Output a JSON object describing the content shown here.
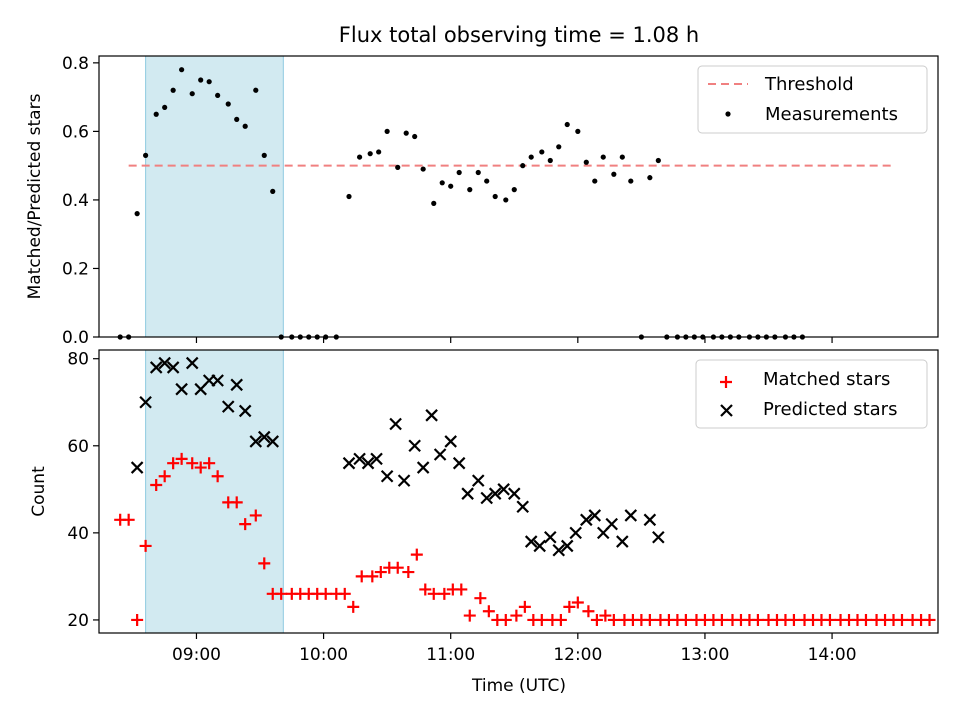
{
  "chart_data": [
    {
      "type": "scatter",
      "title": "Flux total observing time = 1.08 h",
      "xlabel": "",
      "ylabel": "Matched/Predicted stars",
      "xlim": [
        "08:14",
        "14:50"
      ],
      "ylim": [
        0,
        0.82
      ],
      "yticks": [
        "0.0",
        "0.2",
        "0.4",
        "0.6",
        "0.8"
      ],
      "shaded_interval": [
        "08:36",
        "09:41"
      ],
      "shade_color": "#add8e6",
      "legend_position": "top-right",
      "threshold": {
        "name": "Threshold",
        "value": 0.5,
        "x_range": [
          "08:28",
          "14:28"
        ],
        "color": "#f08080"
      },
      "series": [
        {
          "name": "Measurements",
          "marker": "dot",
          "color": "#000000",
          "points": [
            [
              "08:24",
              0.0
            ],
            [
              "08:28",
              0.0
            ],
            [
              "08:32",
              0.36
            ],
            [
              "08:36",
              0.53
            ],
            [
              "08:41",
              0.65
            ],
            [
              "08:45",
              0.67
            ],
            [
              "08:49",
              0.72
            ],
            [
              "08:53",
              0.78
            ],
            [
              "08:58",
              0.71
            ],
            [
              "09:02",
              0.75
            ],
            [
              "09:06",
              0.745
            ],
            [
              "09:10",
              0.705
            ],
            [
              "09:15",
              0.68
            ],
            [
              "09:19",
              0.635
            ],
            [
              "09:23",
              0.615
            ],
            [
              "09:28",
              0.72
            ],
            [
              "09:32",
              0.53
            ],
            [
              "09:36",
              0.425
            ],
            [
              "09:40",
              0.0
            ],
            [
              "09:45",
              0.0
            ],
            [
              "09:49",
              0.0
            ],
            [
              "09:53",
              0.0
            ],
            [
              "09:57",
              0.0
            ],
            [
              "10:01",
              0.0
            ],
            [
              "10:06",
              0.0
            ],
            [
              "10:12",
              0.41
            ],
            [
              "10:17",
              0.525
            ],
            [
              "10:22",
              0.535
            ],
            [
              "10:26",
              0.54
            ],
            [
              "10:30",
              0.6
            ],
            [
              "10:35",
              0.495
            ],
            [
              "10:39",
              0.595
            ],
            [
              "10:43",
              0.585
            ],
            [
              "10:47",
              0.49
            ],
            [
              "10:52",
              0.39
            ],
            [
              "10:56",
              0.45
            ],
            [
              "11:00",
              0.44
            ],
            [
              "11:04",
              0.48
            ],
            [
              "11:09",
              0.43
            ],
            [
              "11:13",
              0.48
            ],
            [
              "11:17",
              0.455
            ],
            [
              "11:21",
              0.41
            ],
            [
              "11:26",
              0.4
            ],
            [
              "11:30",
              0.43
            ],
            [
              "11:34",
              0.5
            ],
            [
              "11:38",
              0.525
            ],
            [
              "11:43",
              0.54
            ],
            [
              "11:47",
              0.515
            ],
            [
              "11:51",
              0.555
            ],
            [
              "11:55",
              0.62
            ],
            [
              "12:00",
              0.6
            ],
            [
              "12:04",
              0.51
            ],
            [
              "12:08",
              0.455
            ],
            [
              "12:12",
              0.525
            ],
            [
              "12:17",
              0.475
            ],
            [
              "12:21",
              0.525
            ],
            [
              "12:25",
              0.455
            ],
            [
              "12:30",
              0.0
            ],
            [
              "12:34",
              0.465
            ],
            [
              "12:38",
              0.515
            ],
            [
              "12:42",
              0.0
            ],
            [
              "12:47",
              0.0
            ],
            [
              "12:51",
              0.0
            ],
            [
              "12:55",
              0.0
            ],
            [
              "12:59",
              0.0
            ],
            [
              "13:04",
              0.0
            ],
            [
              "13:08",
              0.0
            ],
            [
              "13:12",
              0.0
            ],
            [
              "13:16",
              0.0
            ],
            [
              "13:21",
              0.0
            ],
            [
              "13:25",
              0.0
            ],
            [
              "13:29",
              0.0
            ],
            [
              "13:33",
              0.0
            ],
            [
              "13:38",
              0.0
            ],
            [
              "13:42",
              0.0
            ],
            [
              "13:46",
              0.0
            ]
          ]
        }
      ]
    },
    {
      "type": "scatter",
      "title": "",
      "xlabel": "Time (UTC)",
      "ylabel": "Count",
      "xlim": [
        "08:14",
        "14:50"
      ],
      "ylim": [
        17,
        82
      ],
      "yticks": [
        "20",
        "40",
        "60",
        "80"
      ],
      "xticks": [
        "09:00",
        "10:00",
        "11:00",
        "12:00",
        "13:00",
        "14:00"
      ],
      "shaded_interval": [
        "08:36",
        "09:41"
      ],
      "shade_color": "#add8e6",
      "legend_position": "top-right",
      "series": [
        {
          "name": "Matched stars",
          "marker": "plus",
          "color": "#ff0000",
          "points": [
            [
              "08:24",
              43
            ],
            [
              "08:28",
              43
            ],
            [
              "08:32",
              20
            ],
            [
              "08:36",
              37
            ],
            [
              "08:41",
              51
            ],
            [
              "08:45",
              53
            ],
            [
              "08:49",
              56
            ],
            [
              "08:53",
              57
            ],
            [
              "08:58",
              56
            ],
            [
              "09:02",
              55
            ],
            [
              "09:06",
              56
            ],
            [
              "09:10",
              53
            ],
            [
              "09:15",
              47
            ],
            [
              "09:19",
              47
            ],
            [
              "09:23",
              42
            ],
            [
              "09:28",
              44
            ],
            [
              "09:32",
              33
            ],
            [
              "09:36",
              26
            ],
            [
              "09:40",
              26
            ],
            [
              "09:45",
              26
            ],
            [
              "09:49",
              26
            ],
            [
              "09:53",
              26
            ],
            [
              "09:57",
              26
            ],
            [
              "10:01",
              26
            ],
            [
              "10:06",
              26
            ],
            [
              "10:10",
              26
            ],
            [
              "10:14",
              23
            ],
            [
              "10:18",
              30
            ],
            [
              "10:23",
              30
            ],
            [
              "10:27",
              31
            ],
            [
              "10:31",
              32
            ],
            [
              "10:35",
              32
            ],
            [
              "10:40",
              31
            ],
            [
              "10:44",
              35
            ],
            [
              "10:48",
              27
            ],
            [
              "10:52",
              26
            ],
            [
              "10:57",
              26
            ],
            [
              "11:01",
              27
            ],
            [
              "11:05",
              27
            ],
            [
              "11:09",
              21
            ],
            [
              "11:14",
              25
            ],
            [
              "11:18",
              22
            ],
            [
              "11:22",
              20
            ],
            [
              "11:26",
              20
            ],
            [
              "11:31",
              21
            ],
            [
              "11:35",
              23
            ],
            [
              "11:39",
              20
            ],
            [
              "11:43",
              20
            ],
            [
              "11:48",
              20
            ],
            [
              "11:52",
              20
            ],
            [
              "11:56",
              23
            ],
            [
              "12:00",
              24
            ],
            [
              "12:05",
              22
            ],
            [
              "12:09",
              20
            ],
            [
              "12:13",
              21
            ],
            [
              "12:17",
              20
            ],
            [
              "12:22",
              20
            ],
            [
              "12:26",
              20
            ],
            [
              "12:30",
              20
            ],
            [
              "12:34",
              20
            ],
            [
              "12:39",
              20
            ],
            [
              "12:43",
              20
            ],
            [
              "12:47",
              20
            ],
            [
              "12:51",
              20
            ],
            [
              "12:56",
              20
            ],
            [
              "13:00",
              20
            ],
            [
              "13:04",
              20
            ],
            [
              "13:08",
              20
            ],
            [
              "13:13",
              20
            ],
            [
              "13:17",
              20
            ],
            [
              "13:21",
              20
            ],
            [
              "13:25",
              20
            ],
            [
              "13:30",
              20
            ],
            [
              "13:34",
              20
            ],
            [
              "13:38",
              20
            ],
            [
              "13:42",
              20
            ],
            [
              "13:47",
              20
            ],
            [
              "13:51",
              20
            ],
            [
              "13:55",
              20
            ],
            [
              "13:59",
              20
            ],
            [
              "14:04",
              20
            ],
            [
              "14:08",
              20
            ],
            [
              "14:12",
              20
            ],
            [
              "14:16",
              20
            ],
            [
              "14:21",
              20
            ],
            [
              "14:25",
              20
            ],
            [
              "14:29",
              20
            ],
            [
              "14:33",
              20
            ],
            [
              "14:38",
              20
            ],
            [
              "14:42",
              20
            ],
            [
              "14:46",
              20
            ]
          ]
        },
        {
          "name": "Predicted stars",
          "marker": "x",
          "color": "#000000",
          "points": [
            [
              "08:32",
              55
            ],
            [
              "08:36",
              70
            ],
            [
              "08:41",
              78
            ],
            [
              "08:45",
              79
            ],
            [
              "08:49",
              78
            ],
            [
              "08:53",
              73
            ],
            [
              "08:58",
              79
            ],
            [
              "09:02",
              73
            ],
            [
              "09:06",
              75
            ],
            [
              "09:10",
              75
            ],
            [
              "09:15",
              69
            ],
            [
              "09:19",
              74
            ],
            [
              "09:23",
              68
            ],
            [
              "09:28",
              61
            ],
            [
              "09:32",
              62
            ],
            [
              "09:36",
              61
            ],
            [
              "10:12",
              56
            ],
            [
              "10:17",
              57
            ],
            [
              "10:21",
              56
            ],
            [
              "10:25",
              57
            ],
            [
              "10:30",
              53
            ],
            [
              "10:34",
              65
            ],
            [
              "10:38",
              52
            ],
            [
              "10:43",
              60
            ],
            [
              "10:47",
              55
            ],
            [
              "10:51",
              67
            ],
            [
              "10:55",
              58
            ],
            [
              "11:00",
              61
            ],
            [
              "11:04",
              56
            ],
            [
              "11:08",
              49
            ],
            [
              "11:13",
              52
            ],
            [
              "11:17",
              48
            ],
            [
              "11:21",
              49
            ],
            [
              "11:25",
              50
            ],
            [
              "11:30",
              49
            ],
            [
              "11:34",
              46
            ],
            [
              "11:38",
              38
            ],
            [
              "11:42",
              37
            ],
            [
              "11:47",
              39
            ],
            [
              "11:51",
              36
            ],
            [
              "11:55",
              37
            ],
            [
              "11:59",
              40
            ],
            [
              "12:04",
              43
            ],
            [
              "12:08",
              44
            ],
            [
              "12:12",
              40
            ],
            [
              "12:16",
              42
            ],
            [
              "12:21",
              38
            ],
            [
              "12:25",
              44
            ],
            [
              "12:34",
              43
            ],
            [
              "12:38",
              39
            ]
          ]
        }
      ]
    }
  ]
}
